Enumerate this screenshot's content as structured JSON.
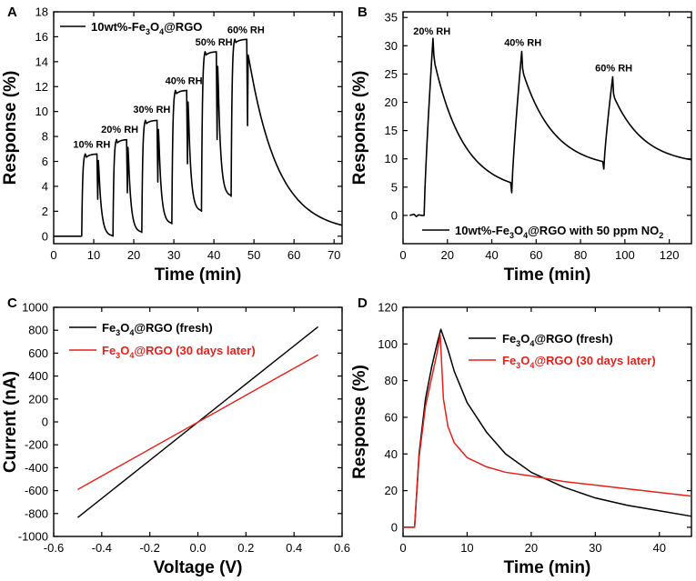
{
  "colors": {
    "black": "#000000",
    "red": "#e8201a"
  },
  "chart_data": [
    {
      "panel": "A",
      "type": "line",
      "xlabel": "Time (min)",
      "ylabel": "Response (%)",
      "xlim": [
        0,
        72
      ],
      "ylim": [
        -0.6,
        18
      ],
      "xticks": [
        0,
        10,
        20,
        30,
        40,
        50,
        60,
        70
      ],
      "yticks": [
        0,
        2,
        4,
        6,
        8,
        10,
        12,
        14,
        16,
        18
      ],
      "legend": {
        "prefix": "10wt%-Fe",
        "sub1": "3",
        "mid": "O",
        "sub2": "4",
        "suffix": "@RGO",
        "position": "top-left"
      },
      "annotations": [
        {
          "text": "10% RH",
          "x": 9.5,
          "y": 7.1
        },
        {
          "text": "20% RH",
          "x": 16.5,
          "y": 8.3
        },
        {
          "text": "30% RH",
          "x": 24.5,
          "y": 9.9
        },
        {
          "text": "40% RH",
          "x": 32.5,
          "y": 12.2
        },
        {
          "text": "50% RH",
          "x": 40,
          "y": 15.3
        },
        {
          "text": "60% RH",
          "x": 48,
          "y": 16.3
        }
      ],
      "series": [
        {
          "name": "10wt%-Fe3O4@RGO",
          "color": "#000000",
          "pulses": [
            {
              "start": 7.0,
              "end": 11.2,
              "max": 6.6,
              "min": 0.0
            },
            {
              "start": 14.8,
              "end": 18.6,
              "max": 7.75,
              "min": 0.0
            },
            {
              "start": 22.0,
              "end": 26.2,
              "max": 9.3,
              "min": 0.3
            },
            {
              "start": 29.5,
              "end": 33.6,
              "max": 11.7,
              "min": 1.0
            },
            {
              "start": 36.9,
              "end": 41.0,
              "max": 14.8,
              "min": 2.0
            },
            {
              "start": 44.3,
              "end": 48.6,
              "max": 15.8,
              "min": 3.2
            }
          ],
          "baseline_end": 0.3
        }
      ]
    },
    {
      "panel": "B",
      "type": "line",
      "xlabel": "Time (min)",
      "ylabel": "Response (%)",
      "xlim": [
        0,
        130
      ],
      "ylim": [
        -5,
        36
      ],
      "xticks": [
        0,
        20,
        40,
        60,
        80,
        100,
        120
      ],
      "yticks": [
        0,
        5,
        10,
        15,
        20,
        25,
        30,
        35
      ],
      "legend": {
        "prefix": "10wt%-Fe",
        "sub1": "3",
        "mid": "O",
        "sub2": "4",
        "suffix": "@RGO with 50 ppm NO",
        "sub3": "2",
        "position": "bottom-center"
      },
      "annotations": [
        {
          "text": "20% RH",
          "x": 13,
          "y": 32
        },
        {
          "text": "40% RH",
          "x": 54,
          "y": 30
        },
        {
          "text": "60% RH",
          "x": 95,
          "y": 25.5
        }
      ],
      "series": [
        {
          "name": "10wt%-Fe3O4@RGO with 50 ppm NO2",
          "color": "#000000",
          "peaks": [
            {
              "start": 9.5,
              "peak_t": 13.5,
              "peak": 31.3,
              "end": 48.5,
              "end_val": 4.0
            },
            {
              "start": 49,
              "peak_t": 53.5,
              "peak": 29.0,
              "end": 90,
              "end_val": 8.2
            },
            {
              "start": 90.5,
              "peak_t": 94.5,
              "peak": 24.5,
              "end": 130,
              "end_val": 8.9
            }
          ]
        }
      ]
    },
    {
      "panel": "C",
      "type": "line",
      "xlabel": "Voltage (V)",
      "ylabel": "Current (nA)",
      "xlim": [
        -0.6,
        0.6
      ],
      "ylim": [
        -1000,
        1000
      ],
      "xticks": [
        -0.6,
        -0.4,
        -0.2,
        0.0,
        0.2,
        0.4,
        0.6
      ],
      "xtick_labels": [
        "-0.6",
        "-0.4",
        "-0.2",
        "0.0",
        "0.2",
        "0.4",
        "0.6"
      ],
      "yticks": [
        -1000,
        -800,
        -600,
        -400,
        -200,
        0,
        200,
        400,
        600,
        800,
        1000
      ],
      "legend_position": "top-left",
      "series": [
        {
          "name": "Fe3O4@RGO (fresh)",
          "color": "#000000",
          "x": [
            -0.5,
            0.5
          ],
          "y": [
            -835,
            830
          ]
        },
        {
          "name": "Fe3O4@RGO (30 days later)",
          "color": "#e8201a",
          "x": [
            -0.5,
            0.5
          ],
          "y": [
            -590,
            585
          ]
        }
      ]
    },
    {
      "panel": "D",
      "type": "line",
      "xlabel": "Time (min)",
      "ylabel": "Response (%)",
      "xlim": [
        0,
        45
      ],
      "ylim": [
        -5,
        120
      ],
      "xticks": [
        0,
        10,
        20,
        30,
        40
      ],
      "yticks": [
        0,
        20,
        40,
        60,
        80,
        100,
        120
      ],
      "legend_position": "top-right",
      "series": [
        {
          "name": "Fe3O4@RGO (fresh)",
          "color": "#000000",
          "x": [
            0,
            1.8,
            2.5,
            3.5,
            4.5,
            5.3,
            5.9,
            7,
            8,
            10,
            13,
            16,
            20,
            25,
            30,
            35,
            40,
            45
          ],
          "y": [
            0,
            0,
            40,
            70,
            88,
            100,
            108,
            97,
            85,
            68,
            52,
            40,
            30,
            22,
            16,
            12,
            9,
            6
          ]
        },
        {
          "name": "Fe3O4@RGO (30 days later)",
          "color": "#e8201a",
          "x": [
            0,
            1.8,
            2.5,
            3.5,
            4.5,
            5.3,
            5.8,
            6.3,
            7,
            8,
            10,
            13,
            16,
            20,
            25,
            30,
            35,
            40,
            45
          ],
          "y": [
            0,
            0,
            38,
            66,
            82,
            95,
            105,
            70,
            55,
            46,
            38,
            33,
            30,
            28,
            25,
            23,
            21,
            19,
            17
          ]
        }
      ]
    }
  ],
  "legend_c": [
    {
      "pre": "Fe",
      "s1": "3",
      "mid": "O",
      "s2": "4",
      "post": "@RGO (fresh)"
    },
    {
      "pre": "Fe",
      "s1": "3",
      "mid": "O",
      "s2": "4",
      "post": "@RGO (30 days later)"
    }
  ],
  "legend_d": [
    {
      "pre": "Fe",
      "s1": "3",
      "mid": "O",
      "s2": "4",
      "post": "@RGO (fresh)"
    },
    {
      "pre": "Fe",
      "s1": "3",
      "mid": "O",
      "s2": "4",
      "post": "@RGO (30 days later)"
    }
  ]
}
